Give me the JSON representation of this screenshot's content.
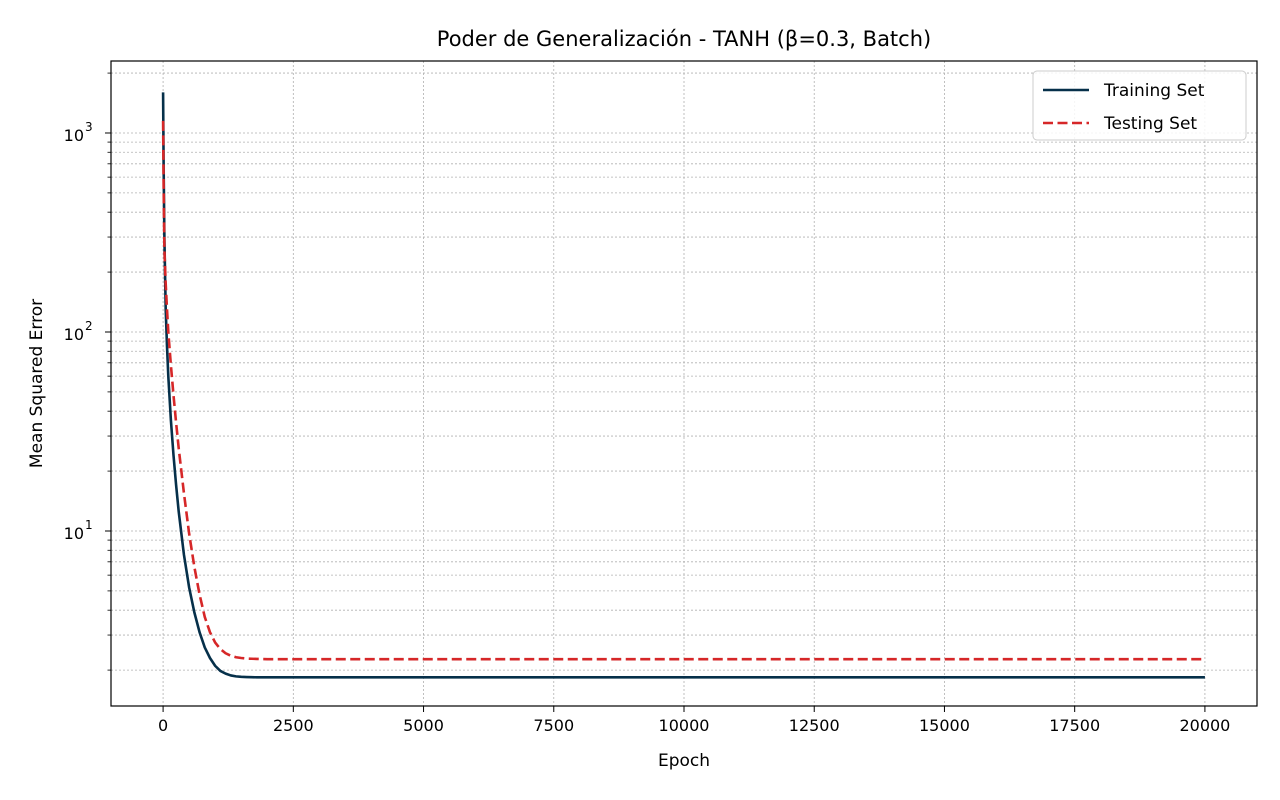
{
  "chart_data": {
    "type": "line",
    "title": "Poder de Generalización - TANH (β=0.3, Batch)",
    "xlabel": "Epoch",
    "ylabel": "Mean Squared Error",
    "xlim": [
      -1000,
      21000
    ],
    "ylim": [
      1.32,
      2300
    ],
    "yscale": "log",
    "grid": true,
    "legend_position": "top-right",
    "x_ticks": [
      0,
      2500,
      5000,
      7500,
      10000,
      12500,
      15000,
      17500,
      20000
    ],
    "x_tick_labels": [
      "0",
      "2500",
      "5000",
      "7500",
      "10000",
      "12500",
      "15000",
      "17500",
      "20000"
    ],
    "y_major_ticks": [
      {
        "value": 10,
        "base": "10",
        "exp": "1"
      },
      {
        "value": 100,
        "base": "10",
        "exp": "2"
      },
      {
        "value": 1000,
        "base": "10",
        "exp": "3"
      }
    ],
    "series": [
      {
        "name": "Training Set",
        "color": "#06304a",
        "dash": "solid",
        "x": [
          0,
          10,
          25,
          50,
          75,
          100,
          150,
          200,
          250,
          300,
          400,
          500,
          600,
          700,
          800,
          900,
          1000,
          1100,
          1200,
          1300,
          1400,
          1500,
          1600,
          1700,
          1800,
          2000,
          2500,
          3000,
          4000,
          5000,
          7500,
          10000,
          12500,
          15000,
          17500,
          20000
        ],
        "values": [
          1600,
          700,
          300,
          130,
          85,
          60,
          36,
          24,
          17,
          12.5,
          7.6,
          5.2,
          3.9,
          3.1,
          2.6,
          2.3,
          2.1,
          1.98,
          1.92,
          1.88,
          1.86,
          1.85,
          1.845,
          1.842,
          1.84,
          1.84,
          1.84,
          1.84,
          1.84,
          1.84,
          1.84,
          1.84,
          1.84,
          1.84,
          1.84,
          1.84
        ]
      },
      {
        "name": "Testing Set",
        "color": "#d62728",
        "dash": "dashed",
        "x": [
          0,
          10,
          25,
          50,
          75,
          100,
          150,
          200,
          250,
          300,
          400,
          500,
          600,
          700,
          800,
          900,
          1000,
          1100,
          1200,
          1300,
          1400,
          1500,
          1600,
          1700,
          1800,
          2000,
          2500,
          3000,
          4000,
          5000,
          7500,
          10000,
          12500,
          15000,
          17500,
          20000
        ],
        "values": [
          1150,
          550,
          260,
          175,
          130,
          100,
          68,
          48,
          35,
          26,
          15.5,
          9.7,
          6.6,
          4.8,
          3.7,
          3.1,
          2.75,
          2.55,
          2.43,
          2.36,
          2.32,
          2.3,
          2.285,
          2.28,
          2.275,
          2.27,
          2.27,
          2.27,
          2.27,
          2.27,
          2.27,
          2.27,
          2.27,
          2.27,
          2.27,
          2.27
        ]
      }
    ]
  }
}
